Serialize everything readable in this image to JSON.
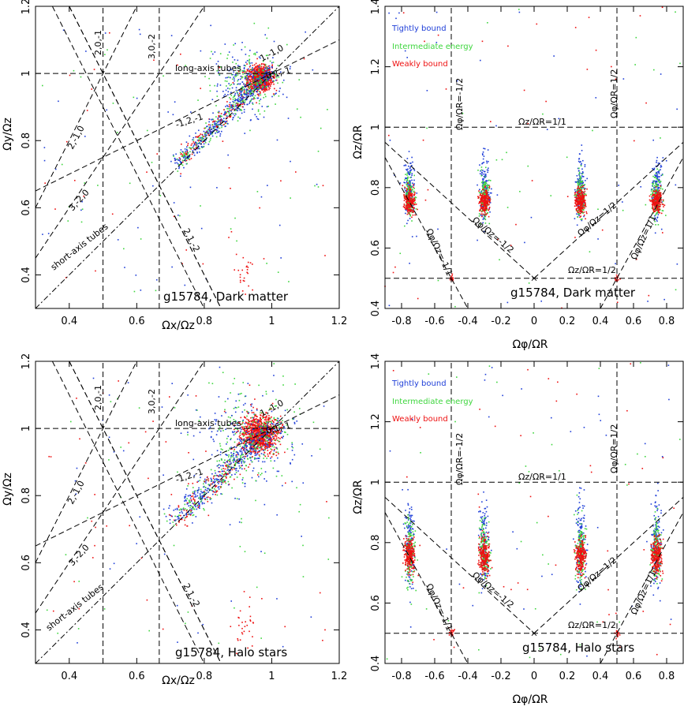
{
  "chart_data": [
    {
      "id": "tl",
      "type": "scatter",
      "title": "g15784, Dark matter",
      "xlabel": "Ωx/Ωz",
      "ylabel": "Ωy/Ωz",
      "xlim": [
        0.3,
        1.2
      ],
      "ylim": [
        0.3,
        1.2
      ],
      "xticks": [
        "0.4",
        "0.6",
        "0.8",
        "1",
        "1.2"
      ],
      "yticks": [
        "0.4",
        "0.6",
        "0.8",
        "1",
        "1.2"
      ],
      "series": [
        {
          "name": "Tightly bound",
          "color": "#1f3fd8"
        },
        {
          "name": "Intermediate energy",
          "color": "#3fd63f"
        },
        {
          "name": "Weakly bound",
          "color": "#ee1111"
        }
      ],
      "resonance_labels": [
        "2,0,-1",
        "3,0,-2",
        "long-axis tubes",
        "1,-1,0",
        "0,1,-1",
        "-1,2,-1",
        "2,-1,0",
        "3,-2,0",
        "short-axis tubes",
        "2,1,-2"
      ]
    },
    {
      "id": "tr",
      "type": "scatter",
      "title": "g15784, Dark matter",
      "xlabel": "Ωφ/ΩR",
      "ylabel": "Ωz/ΩR",
      "xlim": [
        -0.9,
        0.9
      ],
      "ylim": [
        0.4,
        1.4
      ],
      "xticks": [
        "-0.8",
        "-0.6",
        "-0.4",
        "-0.2",
        "0",
        "0.2",
        "0.4",
        "0.6",
        "0.8"
      ],
      "yticks": [
        "0.4",
        "0.6",
        "0.8",
        "1",
        "1.2",
        "1.4"
      ],
      "legend": [
        "Tightly bound",
        "Intermediate energy",
        "Weakly bound"
      ],
      "legend_colors": [
        "#1f3fd8",
        "#3fd63f",
        "#ee1111"
      ],
      "resonance_labels": [
        "Ωφ/ΩR=-1/2",
        "Ωφ/ΩR=1/2",
        "Ωz/ΩR=1/1",
        "Ωz/ΩR=1/2",
        "Ωφ/Ωz=-1/1",
        "Ωφ/Ωz=-1/2",
        "Ωφ/Ωz=1/2",
        "Ωφ/Ωz=1/1"
      ]
    },
    {
      "id": "bl",
      "type": "scatter",
      "title": "g15784, Halo stars",
      "xlabel": "Ωx/Ωz",
      "ylabel": "Ωy/Ωz",
      "xlim": [
        0.3,
        1.2
      ],
      "ylim": [
        0.3,
        1.2
      ],
      "xticks": [
        "0.4",
        "0.6",
        "0.8",
        "1",
        "1.2"
      ],
      "yticks": [
        "0.4",
        "0.6",
        "0.8",
        "1",
        "1.2"
      ],
      "resonance_labels": [
        "2,0,-1",
        "3,0,-2",
        "long-axis tubes",
        "1,-1,0",
        "0,1,-1",
        "-1,2,-1",
        "2,-1,0",
        "3,-2,0",
        "short-axis tubes",
        "2,1,-2"
      ]
    },
    {
      "id": "br",
      "type": "scatter",
      "title": "g15784, Halo stars",
      "xlabel": "Ωφ/ΩR",
      "ylabel": "Ωz/ΩR",
      "xlim": [
        -0.9,
        0.9
      ],
      "ylim": [
        0.4,
        1.4
      ],
      "xticks": [
        "-0.8",
        "-0.6",
        "-0.4",
        "-0.2",
        "0",
        "0.2",
        "0.4",
        "0.6",
        "0.8"
      ],
      "yticks": [
        "0.4",
        "0.6",
        "0.8",
        "1",
        "1.2",
        "1.4"
      ],
      "legend": [
        "Tightly bound",
        "Intermediate energy",
        "Weakly bound"
      ],
      "legend_colors": [
        "#1f3fd8",
        "#3fd63f",
        "#ee1111"
      ],
      "resonance_labels": [
        "Ωφ/ΩR=-1/2",
        "Ωφ/ΩR=1/2",
        "Ωz/ΩR=1/1",
        "Ωz/ΩR=1/2",
        "Ωφ/Ωz=-1/1",
        "Ωφ/Ωz=-1/2",
        "Ωφ/Ωz=1/2",
        "Ωφ/Ωz=1/1"
      ]
    }
  ]
}
